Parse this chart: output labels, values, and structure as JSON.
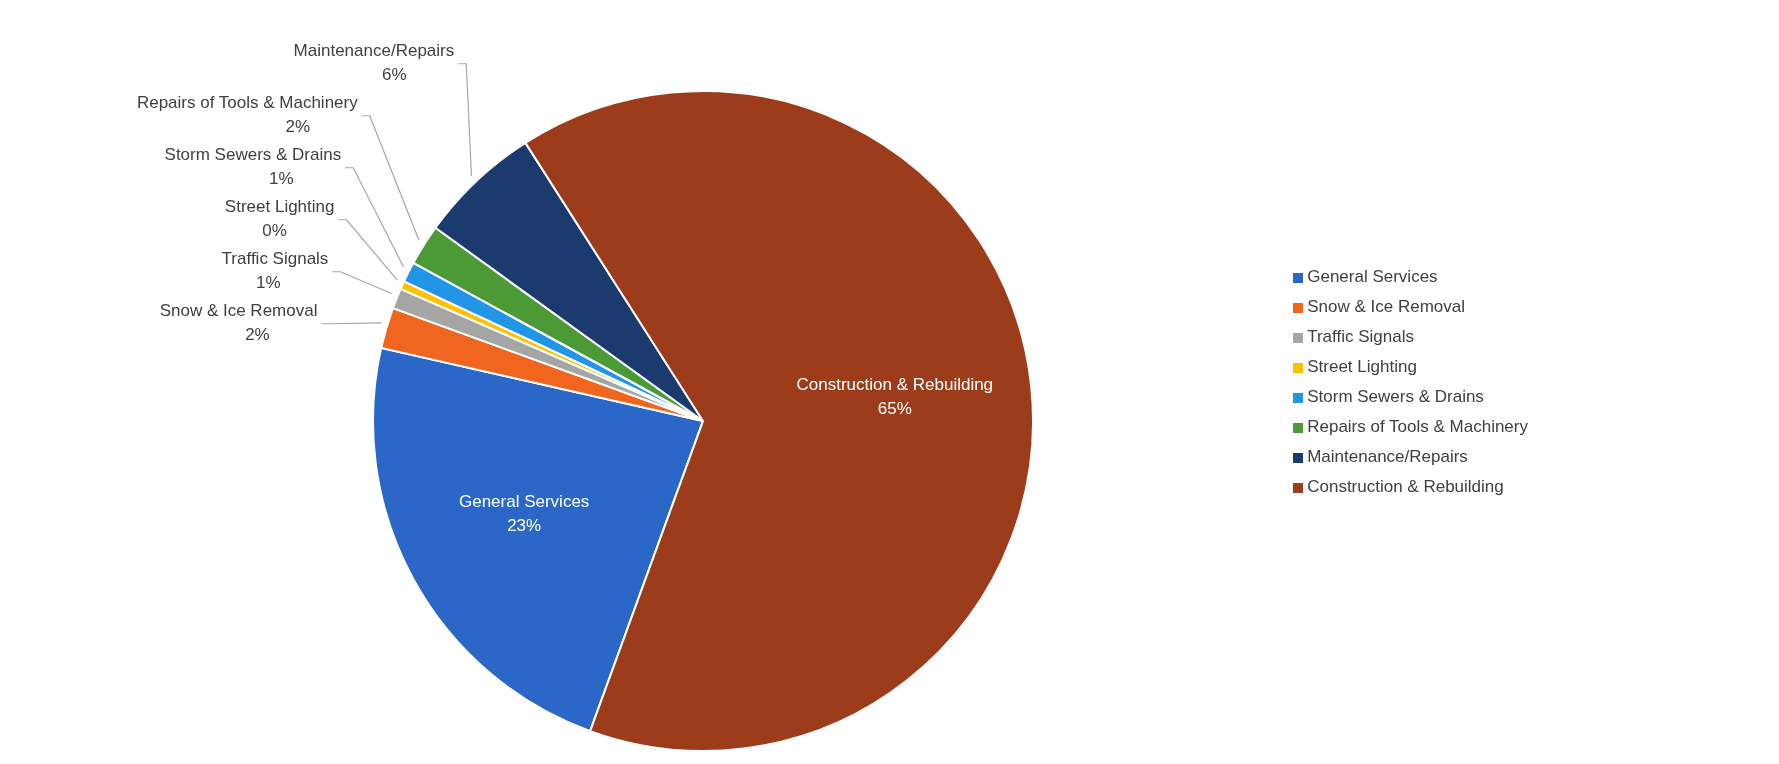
{
  "chart_data": {
    "type": "pie",
    "categories": [
      "General Services",
      "Snow & Ice Removal",
      "Traffic Signals",
      "Street Lighting",
      "Storm Sewers & Drains",
      "Repairs of Tools & Machinery",
      "Maintenance/Repairs",
      "Construction & Rebuilding"
    ],
    "values": [
      23,
      2,
      1,
      0.4,
      1,
      2,
      6,
      64.6
    ],
    "value_labels": [
      "23%",
      "2%",
      "1%",
      "0%",
      "1%",
      "2%",
      "6%",
      "65%"
    ],
    "colors": [
      "#2a67c7",
      "#f0661e",
      "#a5a5a5",
      "#ffc000",
      "#2196e6",
      "#4c9a35",
      "#1b3a6d",
      "#9c3c1b"
    ],
    "legend": "right"
  }
}
